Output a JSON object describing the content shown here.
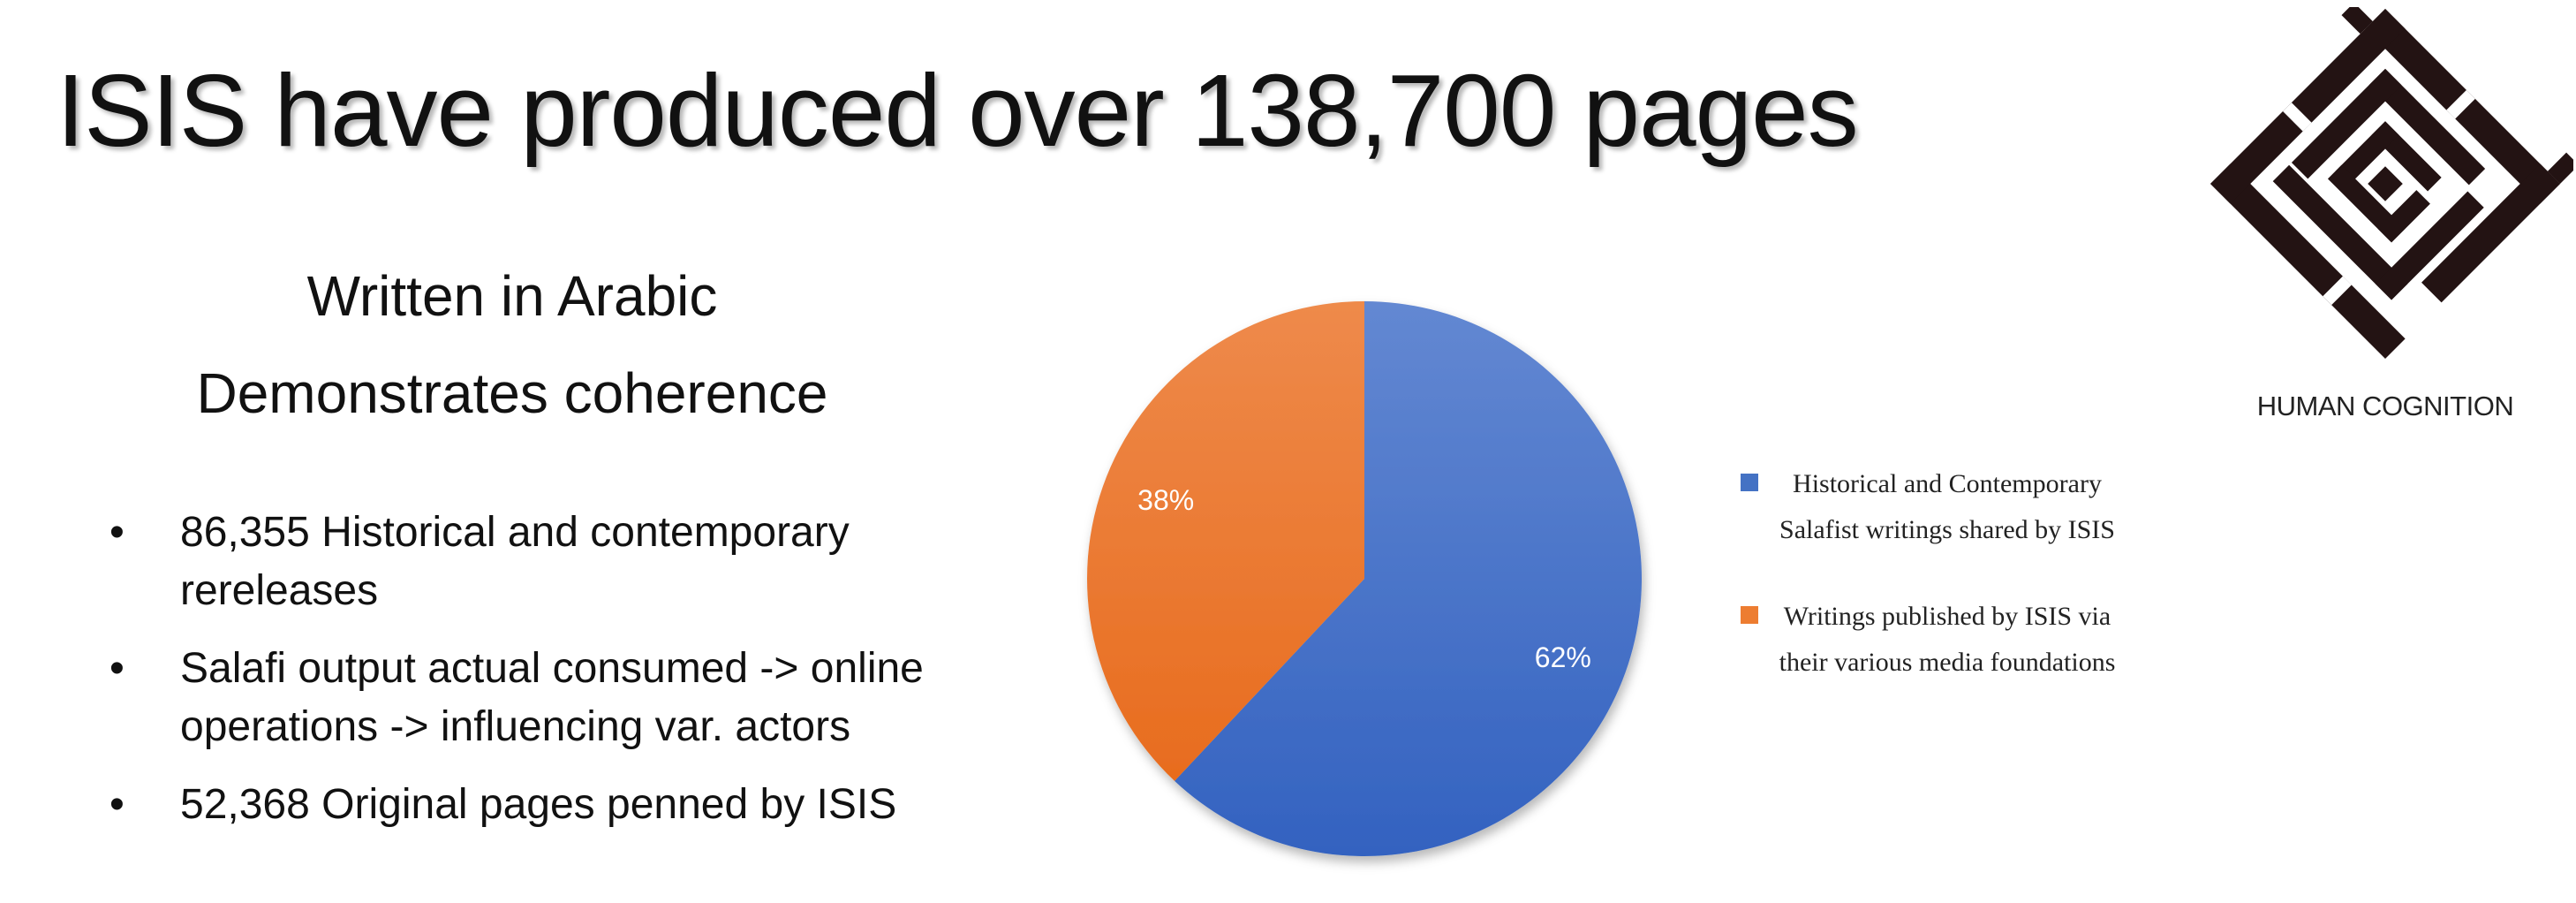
{
  "slide": {
    "title": "ISIS have produced over 138,700 pages",
    "subheadings": [
      "Written in Arabic",
      "Demonstrates coherence"
    ],
    "bullets": [
      {
        "line1": "86,355 Historical and contemporary",
        "line2": "rereleases"
      },
      {
        "line1": "Salafi output actual consumed -> online",
        "line2": "operations -> influencing var. actors"
      },
      {
        "line1": "52,368 Original pages penned by ISIS",
        "line2": ""
      }
    ],
    "bullet_glyph": "•"
  },
  "logo": {
    "caption": "HUMAN COGNITION",
    "icon": "square-kufic-calligraphy-logo",
    "color": "#231313"
  },
  "chart_data": {
    "type": "pie",
    "slices": [
      {
        "name": "Historical and Contemporary Salafist writings shared by ISIS",
        "value": 62,
        "label": "62%",
        "color": "#4472C4"
      },
      {
        "name": "Writings published by ISIS via their various media foundations",
        "value": 38,
        "label": "38%",
        "color": "#ED7D31"
      }
    ],
    "legend": {
      "placement": "right",
      "items": [
        {
          "line1": "Historical and Contemporary",
          "line2": "Salafist writings shared by ISIS"
        },
        {
          "line1": "Writings published by ISIS via",
          "line2": "their various media foundations"
        }
      ]
    }
  }
}
